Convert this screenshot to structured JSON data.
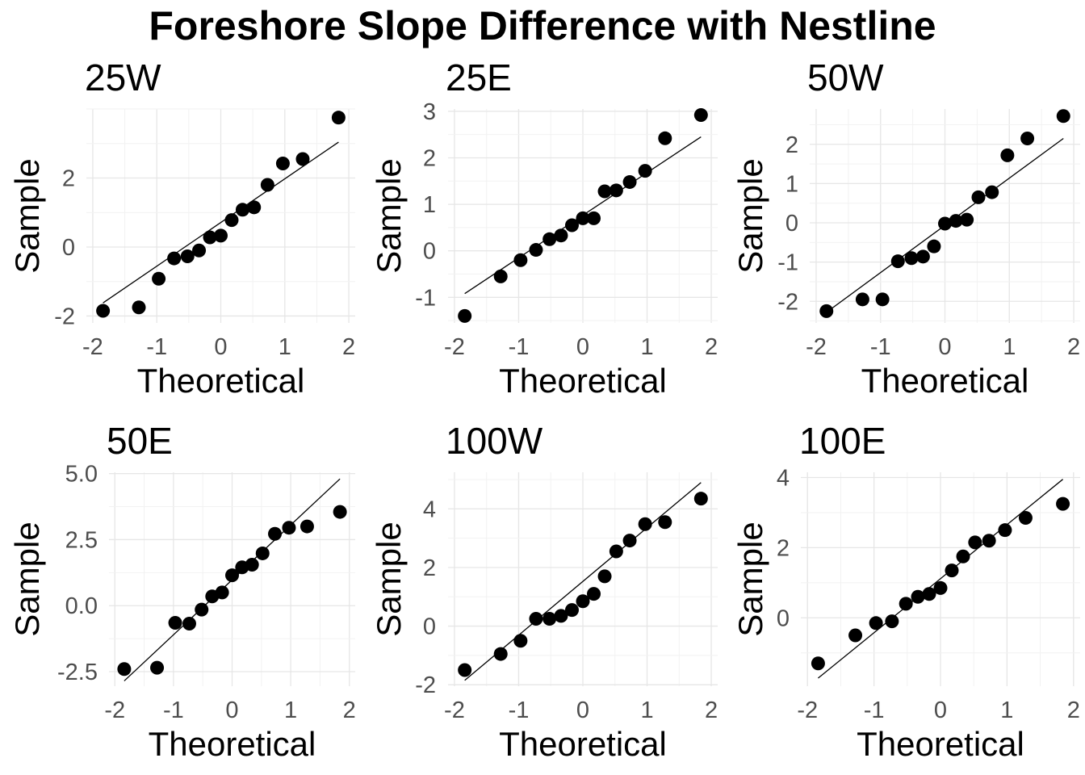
{
  "title": "Foreshore Slope Difference with Nestline",
  "chart_data": [
    {
      "type": "scatter",
      "title": "25W",
      "xlabel": "Theoretical",
      "ylabel": "Sample",
      "xlim": [
        -2.1,
        2.1
      ],
      "ylim": [
        -2.2,
        4.0
      ],
      "xticks": [
        -2,
        -1,
        0,
        1,
        2
      ],
      "yticks": [
        -2,
        0,
        2
      ],
      "x": [
        -1.84,
        -1.28,
        -0.97,
        -0.73,
        -0.52,
        -0.34,
        -0.17,
        0,
        0.17,
        0.34,
        0.52,
        0.73,
        0.97,
        1.28,
        1.84
      ],
      "y": [
        -1.85,
        -1.75,
        -0.92,
        -0.33,
        -0.27,
        -0.1,
        0.28,
        0.33,
        0.78,
        1.08,
        1.15,
        1.8,
        2.42,
        2.55,
        3.75
      ],
      "line": {
        "x": [
          -1.84,
          1.84
        ],
        "y": [
          -1.62,
          3.04
        ]
      },
      "grid": true
    },
    {
      "type": "scatter",
      "title": "25E",
      "xlabel": "Theoretical",
      "ylabel": "Sample",
      "xlim": [
        -2.1,
        2.1
      ],
      "ylim": [
        -1.55,
        3.05
      ],
      "xticks": [
        -2,
        -1,
        0,
        1,
        2
      ],
      "yticks": [
        -1,
        0,
        1,
        2,
        3
      ],
      "x": [
        -1.84,
        -1.28,
        -0.97,
        -0.73,
        -0.52,
        -0.34,
        -0.17,
        0,
        0.17,
        0.34,
        0.52,
        0.73,
        0.97,
        1.28,
        1.84
      ],
      "y": [
        -1.4,
        -0.55,
        -0.2,
        0.02,
        0.25,
        0.33,
        0.55,
        0.7,
        0.7,
        1.28,
        1.3,
        1.48,
        1.72,
        2.42,
        2.92
      ],
      "line": {
        "x": [
          -1.84,
          1.84
        ],
        "y": [
          -0.92,
          2.45
        ]
      },
      "grid": true
    },
    {
      "type": "scatter",
      "title": "50W",
      "xlabel": "Theoretical",
      "ylabel": "Sample",
      "xlim": [
        -2.1,
        2.1
      ],
      "ylim": [
        -2.55,
        2.9
      ],
      "xticks": [
        -2,
        -1,
        0,
        1,
        2
      ],
      "yticks": [
        -2,
        -1,
        0,
        1,
        2
      ],
      "x": [
        -1.84,
        -1.28,
        -0.97,
        -0.73,
        -0.52,
        -0.34,
        -0.17,
        0,
        0.17,
        0.34,
        0.52,
        0.73,
        0.97,
        1.28,
        1.84
      ],
      "y": [
        -2.25,
        -1.95,
        -1.95,
        -0.98,
        -0.9,
        -0.86,
        -0.6,
        -0.02,
        0.05,
        0.08,
        0.65,
        0.78,
        1.72,
        2.15,
        2.72
      ],
      "line": {
        "x": [
          -1.84,
          1.84
        ],
        "y": [
          -2.28,
          2.15
        ]
      },
      "grid": true
    },
    {
      "type": "scatter",
      "title": "50E",
      "xlabel": "Theoretical",
      "ylabel": "Sample",
      "xlim": [
        -2.1,
        2.1
      ],
      "ylim": [
        -3.05,
        5.05
      ],
      "xticks": [
        -2,
        -1,
        0,
        1,
        2
      ],
      "yticks": [
        -2.5,
        0.0,
        2.5,
        5.0
      ],
      "x": [
        -1.84,
        -1.28,
        -0.97,
        -0.73,
        -0.52,
        -0.34,
        -0.17,
        0,
        0.17,
        0.34,
        0.52,
        0.73,
        0.97,
        1.28,
        1.84
      ],
      "y": [
        -2.4,
        -2.35,
        -0.65,
        -0.68,
        -0.15,
        0.35,
        0.5,
        1.15,
        1.45,
        1.55,
        1.98,
        2.72,
        2.95,
        3.0,
        3.55
      ],
      "line": {
        "x": [
          -1.84,
          1.84
        ],
        "y": [
          -2.85,
          4.8
        ]
      },
      "grid": true
    },
    {
      "type": "scatter",
      "title": "100W",
      "xlabel": "Theoretical",
      "ylabel": "Sample",
      "xlim": [
        -2.1,
        2.1
      ],
      "ylim": [
        -2.05,
        5.25
      ],
      "xticks": [
        -2,
        -1,
        0,
        1,
        2
      ],
      "yticks": [
        -2,
        0,
        2,
        4
      ],
      "x": [
        -1.84,
        -1.28,
        -0.97,
        -0.73,
        -0.52,
        -0.34,
        -0.17,
        0,
        0.17,
        0.34,
        0.52,
        0.73,
        0.97,
        1.28,
        1.84
      ],
      "y": [
        -1.5,
        -0.95,
        -0.5,
        0.25,
        0.25,
        0.35,
        0.55,
        0.85,
        1.1,
        1.7,
        2.55,
        2.92,
        3.48,
        3.55,
        4.35
      ],
      "line": {
        "x": [
          -1.84,
          1.84
        ],
        "y": [
          -1.85,
          4.9
        ]
      },
      "grid": true
    },
    {
      "type": "scatter",
      "title": "100E",
      "xlabel": "Theoretical",
      "ylabel": "Sample",
      "xlim": [
        -2.1,
        2.1
      ],
      "ylim": [
        -1.95,
        4.15
      ],
      "xticks": [
        -2,
        -1,
        0,
        1,
        2
      ],
      "yticks": [
        0,
        2,
        4
      ],
      "x": [
        -1.84,
        -1.28,
        -0.97,
        -0.73,
        -0.52,
        -0.34,
        -0.17,
        0,
        0.17,
        0.34,
        0.52,
        0.73,
        0.97,
        1.28,
        1.84
      ],
      "y": [
        -1.3,
        -0.5,
        -0.15,
        -0.1,
        0.4,
        0.6,
        0.68,
        0.85,
        1.35,
        1.75,
        2.15,
        2.2,
        2.5,
        2.85,
        3.25
      ],
      "line": {
        "x": [
          -1.84,
          1.84
        ],
        "y": [
          -1.72,
          3.95
        ]
      },
      "grid": true
    }
  ]
}
